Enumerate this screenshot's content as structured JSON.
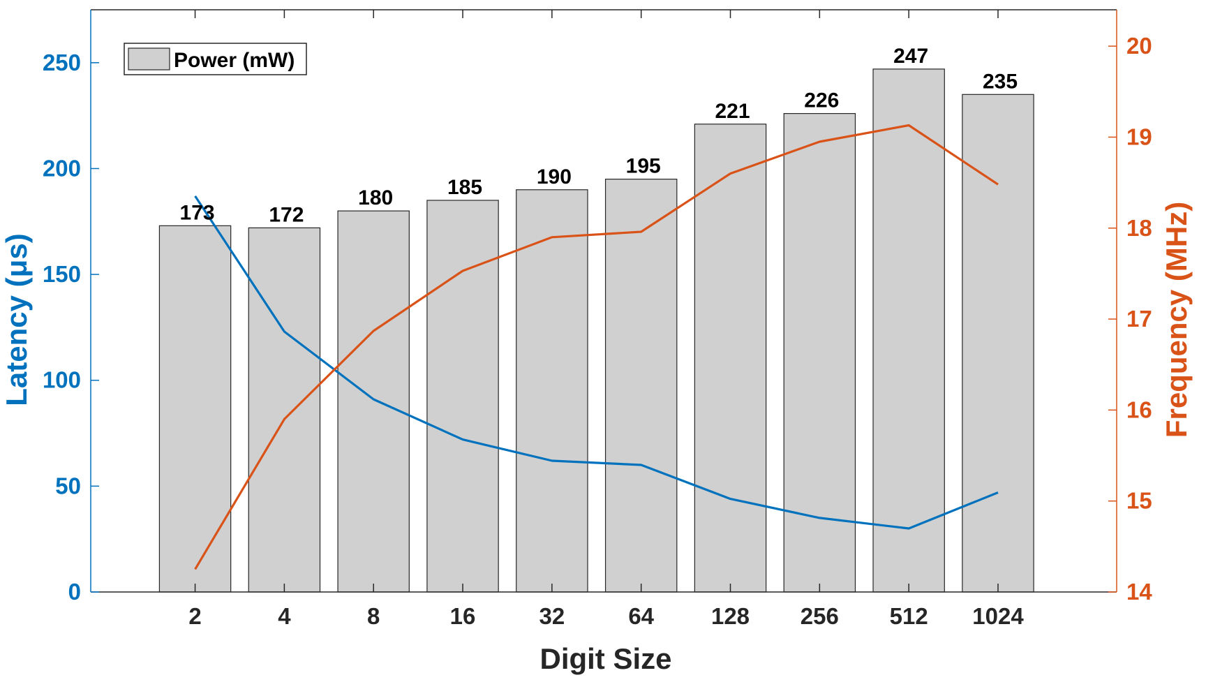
{
  "chart_data": {
    "type": "bar",
    "xlabel": "Digit Size",
    "categories": [
      "2",
      "4",
      "8",
      "16",
      "32",
      "64",
      "128",
      "256",
      "512",
      "1024"
    ],
    "bar_series": {
      "name": "Power (mW)",
      "values": [
        173,
        172,
        180,
        185,
        190,
        195,
        221,
        226,
        247,
        235
      ],
      "color": "#d0d0d0",
      "axis": "left"
    },
    "line_series": [
      {
        "name": "Latency",
        "values": [
          187,
          123,
          91,
          72,
          62,
          60,
          44,
          35,
          30,
          47
        ],
        "color": "#0072bd",
        "axis": "left"
      },
      {
        "name": "Frequency",
        "values": [
          14.25,
          15.9,
          16.87,
          17.53,
          17.9,
          17.96,
          18.6,
          18.95,
          19.13,
          18.48
        ],
        "color": "#d95319",
        "axis": "right"
      }
    ],
    "left_axis": {
      "label": "Latency (μs)",
      "ylim": [
        0,
        275
      ],
      "ticks": [
        0,
        50,
        100,
        150,
        200,
        250
      ],
      "tick_labels": [
        "0",
        "50",
        "100",
        "150",
        "200",
        "250"
      ],
      "color": "#0072bd"
    },
    "right_axis": {
      "label": "Frequency (MHz)",
      "ylim": [
        14,
        20.4
      ],
      "ticks": [
        14,
        15,
        16,
        17,
        18,
        19,
        20
      ],
      "tick_labels": [
        "14",
        "15",
        "16",
        "17",
        "18",
        "19",
        "20"
      ],
      "color": "#d95319"
    },
    "bar_labels": [
      "173",
      "172",
      "180",
      "185",
      "190",
      "195",
      "221",
      "226",
      "247",
      "235"
    ],
    "legend": {
      "label": "Power (mW)",
      "placement": "top-left"
    },
    "grid": false
  }
}
